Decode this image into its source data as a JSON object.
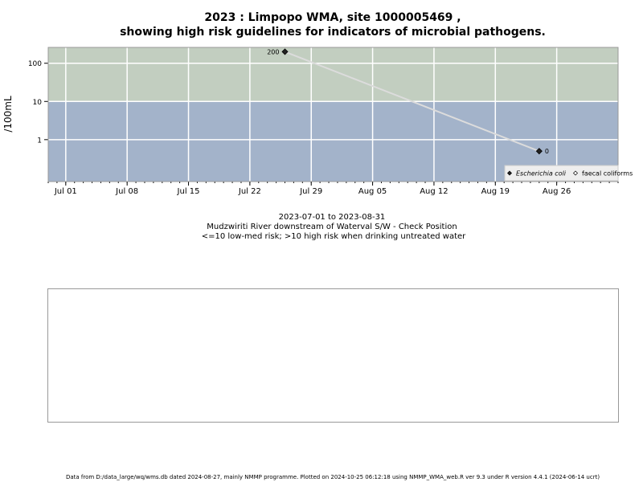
{
  "chart_data": {
    "type": "line",
    "title": "2023 : Limpopo WMA, site 1000005469 ,",
    "subtitle": "showing high risk guidelines for indicators of microbial pathogens.",
    "y_label": "/100mL",
    "notes": [
      "2023-07-01 to 2023-08-31",
      "Mudzwiriti River downstream of Waterval S/W - Check Position",
      "<=10 low-med risk; >10 high risk when drinking untreated water"
    ],
    "footnote": "Data from D:/data_large/wq/wms.db dated 2024-08-27, mainly NMMP programme. Plotted on 2024-10-25 06:12:18 using NMMP_WMA_web.R ver 9.3 under R version 4.4.1 (2024-06-14 ucrt)",
    "x": [
      "2023-07-26",
      "2023-08-24"
    ],
    "series": [
      {
        "name": "Escherichia coli",
        "color": "#222222",
        "line_color": "#dcdcdc",
        "filled": true,
        "values": [
          200,
          0.5
        ],
        "value_labels": [
          "200",
          "0"
        ]
      },
      {
        "name": "faecal coliforms",
        "color": "#222222",
        "filled": false,
        "values": [
          null,
          null
        ]
      }
    ],
    "xlim": [
      "2023-06-29",
      "2023-09-02"
    ],
    "xticks": [
      {
        "value": "2023-07-01",
        "label": "Jul 01"
      },
      {
        "value": "2023-07-08",
        "label": "Jul 08"
      },
      {
        "value": "2023-07-15",
        "label": "Jul 15"
      },
      {
        "value": "2023-07-22",
        "label": "Jul 22"
      },
      {
        "value": "2023-07-29",
        "label": "Jul 29"
      },
      {
        "value": "2023-08-05",
        "label": "Aug 05"
      },
      {
        "value": "2023-08-12",
        "label": "Aug 12"
      },
      {
        "value": "2023-08-19",
        "label": "Aug 19"
      },
      {
        "value": "2023-08-26",
        "label": "Aug 26"
      }
    ],
    "ylim": [
      0.08,
      260
    ],
    "yticks": [
      1,
      10,
      100
    ],
    "log_y": true,
    "grid": true,
    "risk_threshold": 10,
    "band_colors": [
      "#a3b3ca",
      "#c2cec0"
    ],
    "legend": "bottom-right"
  }
}
